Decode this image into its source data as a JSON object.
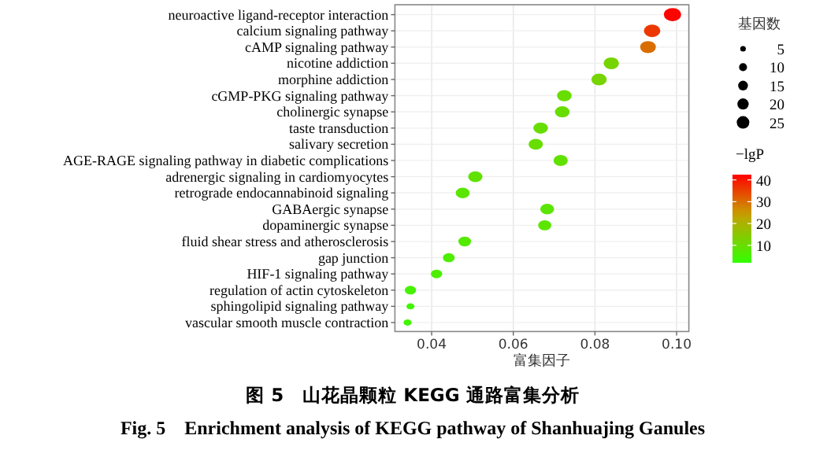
{
  "chart_data": {
    "type": "bubble",
    "orientation": "horizontal",
    "categories": [
      "neuroactive ligand-receptor interaction",
      "calcium signaling pathway",
      "cAMP signaling pathway",
      "nicotine addiction",
      "morphine addiction",
      "cGMP-PKG signaling pathway",
      "cholinergic synapse",
      "taste transduction",
      "salivary secretion",
      "AGE-RAGE signaling pathway in diabetic complications",
      "adrenergic signaling in cardiomyocytes",
      "retrograde endocannabinoid signaling",
      "GABAergic synapse",
      "dopaminergic synapse",
      "fluid shear stress and atherosclerosis",
      "gap junction",
      "HIF-1 signaling pathway",
      "regulation of actin cytoskeleton",
      "sphingolipid signaling pathway",
      "vascular smooth muscle contraction"
    ],
    "values": [
      0.099,
      0.094,
      0.093,
      0.084,
      0.081,
      0.0725,
      0.072,
      0.0667,
      0.0655,
      0.0716,
      0.0507,
      0.0476,
      0.0683,
      0.0677,
      0.0481,
      0.0442,
      0.0412,
      0.0348,
      0.0348,
      0.0341
    ],
    "sizes": [
      28,
      25,
      23,
      22,
      22,
      20,
      20,
      20,
      19,
      19,
      19,
      18,
      18,
      16,
      15,
      13,
      12,
      12,
      6,
      6
    ],
    "size_legend": [
      5,
      10,
      15,
      20,
      25
    ],
    "cvalues": [
      42,
      36,
      30,
      12,
      12,
      10,
      10,
      10,
      10,
      9,
      9,
      8,
      8,
      8,
      7,
      6,
      6,
      5,
      4,
      4
    ],
    "clim": [
      2,
      42.4
    ],
    "cticks": [
      10,
      20,
      30,
      40
    ],
    "xlim": [
      0.031,
      0.103
    ],
    "xticks": [
      {
        "value": 0.04,
        "label": "0.04"
      },
      {
        "value": 0.06,
        "label": "0.06"
      },
      {
        "value": 0.08,
        "label": "0.08"
      },
      {
        "value": 0.1,
        "label": "0.10"
      }
    ],
    "xlabel": "富集因子",
    "legend_title": "基因数",
    "clabel": "−lgP",
    "grid": true,
    "title": "图 5　山花晶颗粒 KEGG 通路富集分析",
    "subtitle": "Fig. 5　Enrichment analysis of KEGG pathway of Shanhuajing Ganules"
  }
}
